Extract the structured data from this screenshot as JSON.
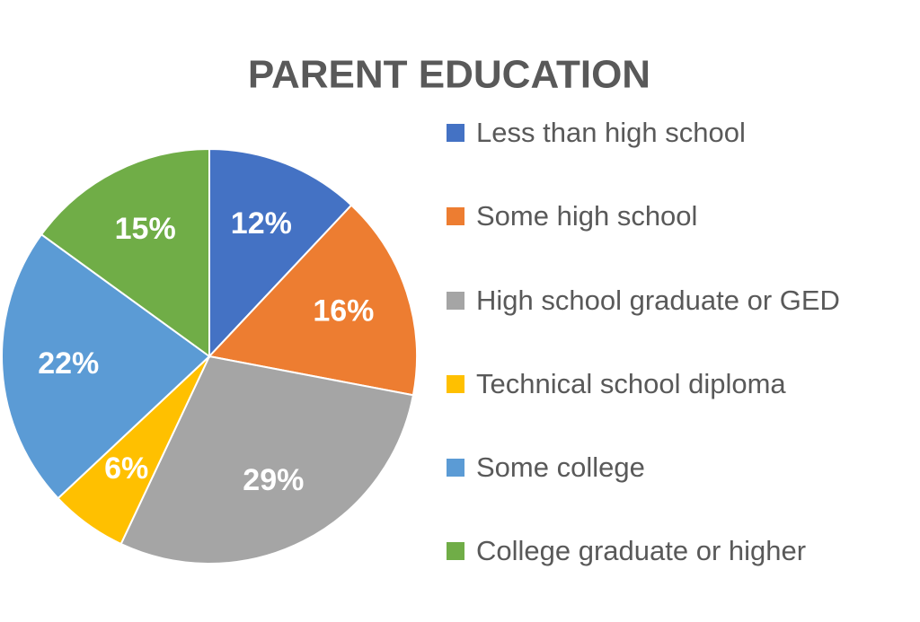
{
  "chart_data": {
    "type": "pie",
    "title": "PARENT EDUCATION",
    "categories": [
      "Less than high school",
      "Some high school",
      "High school graduate or GED",
      "Technical school diploma",
      "Some college",
      "College graduate or higher"
    ],
    "values": [
      12,
      16,
      29,
      6,
      22,
      15
    ],
    "value_labels": [
      "12%",
      "16%",
      "29%",
      "6%",
      "22%",
      "15%"
    ],
    "colors": [
      "#4472c4",
      "#ed7d31",
      "#a5a5a5",
      "#ffc000",
      "#5b9bd5",
      "#70ad47"
    ]
  }
}
